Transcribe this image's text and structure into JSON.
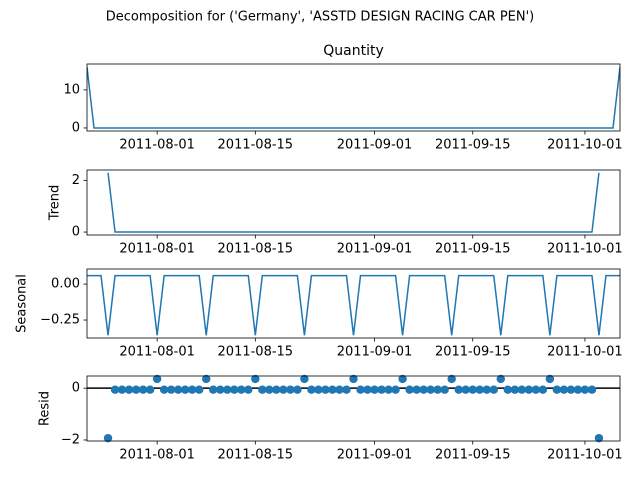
{
  "title": "Decomposition for ('Germany', 'ASSTD DESIGN RACING CAR PEN')",
  "chart_data": [
    {
      "type": "line",
      "title": "Quantity",
      "color": "#1f77b4",
      "x": [
        "2011-07-22",
        "2011-07-23",
        "2011-07-24",
        "2011-07-25",
        "2011-07-26",
        "2011-07-27",
        "2011-07-28",
        "2011-07-29",
        "2011-07-30",
        "2011-07-31",
        "2011-08-01",
        "2011-08-02",
        "2011-08-03",
        "2011-08-04",
        "2011-08-05",
        "2011-08-06",
        "2011-08-07",
        "2011-08-08",
        "2011-08-09",
        "2011-08-10",
        "2011-08-11",
        "2011-08-12",
        "2011-08-13",
        "2011-08-14",
        "2011-08-15",
        "2011-08-16",
        "2011-08-17",
        "2011-08-18",
        "2011-08-19",
        "2011-08-20",
        "2011-08-21",
        "2011-08-22",
        "2011-08-23",
        "2011-08-24",
        "2011-08-25",
        "2011-08-26",
        "2011-08-27",
        "2011-08-28",
        "2011-08-29",
        "2011-08-30",
        "2011-08-31",
        "2011-09-01",
        "2011-09-02",
        "2011-09-03",
        "2011-09-04",
        "2011-09-05",
        "2011-09-06",
        "2011-09-07",
        "2011-09-08",
        "2011-09-09",
        "2011-09-10",
        "2011-09-11",
        "2011-09-12",
        "2011-09-13",
        "2011-09-14",
        "2011-09-15",
        "2011-09-16",
        "2011-09-17",
        "2011-09-18",
        "2011-09-19",
        "2011-09-20",
        "2011-09-21",
        "2011-09-22",
        "2011-09-23",
        "2011-09-24",
        "2011-09-25",
        "2011-09-26",
        "2011-09-27",
        "2011-09-28",
        "2011-09-29",
        "2011-09-30",
        "2011-10-01",
        "2011-10-02",
        "2011-10-03",
        "2011-10-04",
        "2011-10-05",
        "2011-10-06"
      ],
      "values": [
        16,
        0,
        0,
        0,
        0,
        0,
        0,
        0,
        0,
        0,
        0,
        0,
        0,
        0,
        0,
        0,
        0,
        0,
        0,
        0,
        0,
        0,
        0,
        0,
        0,
        0,
        0,
        0,
        0,
        0,
        0,
        0,
        0,
        0,
        0,
        0,
        0,
        0,
        0,
        0,
        0,
        0,
        0,
        0,
        0,
        0,
        0,
        0,
        0,
        0,
        0,
        0,
        0,
        0,
        0,
        0,
        0,
        0,
        0,
        0,
        0,
        0,
        0,
        0,
        0,
        0,
        0,
        0,
        0,
        0,
        0,
        0,
        0,
        0,
        0,
        0,
        16
      ],
      "xlim": [
        "2011-07-22",
        "2011-10-06"
      ],
      "xticks": [
        "2011-08-01",
        "2011-08-15",
        "2011-09-01",
        "2011-09-15",
        "2011-10-01"
      ],
      "ylim": [
        -0.8,
        16.8
      ],
      "yticks": [
        0,
        10
      ]
    },
    {
      "type": "line",
      "ylabel": "Trend",
      "color": "#1f77b4",
      "x": [
        "2011-07-22",
        "2011-07-23",
        "2011-07-24",
        "2011-07-25",
        "2011-07-26",
        "2011-07-27",
        "2011-07-28",
        "2011-07-29",
        "2011-07-30",
        "2011-07-31",
        "2011-08-01",
        "2011-08-02",
        "2011-08-03",
        "2011-08-04",
        "2011-08-05",
        "2011-08-06",
        "2011-08-07",
        "2011-08-08",
        "2011-08-09",
        "2011-08-10",
        "2011-08-11",
        "2011-08-12",
        "2011-08-13",
        "2011-08-14",
        "2011-08-15",
        "2011-08-16",
        "2011-08-17",
        "2011-08-18",
        "2011-08-19",
        "2011-08-20",
        "2011-08-21",
        "2011-08-22",
        "2011-08-23",
        "2011-08-24",
        "2011-08-25",
        "2011-08-26",
        "2011-08-27",
        "2011-08-28",
        "2011-08-29",
        "2011-08-30",
        "2011-08-31",
        "2011-09-01",
        "2011-09-02",
        "2011-09-03",
        "2011-09-04",
        "2011-09-05",
        "2011-09-06",
        "2011-09-07",
        "2011-09-08",
        "2011-09-09",
        "2011-09-10",
        "2011-09-11",
        "2011-09-12",
        "2011-09-13",
        "2011-09-14",
        "2011-09-15",
        "2011-09-16",
        "2011-09-17",
        "2011-09-18",
        "2011-09-19",
        "2011-09-20",
        "2011-09-21",
        "2011-09-22",
        "2011-09-23",
        "2011-09-24",
        "2011-09-25",
        "2011-09-26",
        "2011-09-27",
        "2011-09-28",
        "2011-09-29",
        "2011-09-30",
        "2011-10-01",
        "2011-10-02",
        "2011-10-03",
        "2011-10-04",
        "2011-10-05",
        "2011-10-06"
      ],
      "values": [
        null,
        null,
        null,
        2.29,
        0,
        0,
        0,
        0,
        0,
        0,
        0,
        0,
        0,
        0,
        0,
        0,
        0,
        0,
        0,
        0,
        0,
        0,
        0,
        0,
        0,
        0,
        0,
        0,
        0,
        0,
        0,
        0,
        0,
        0,
        0,
        0,
        0,
        0,
        0,
        0,
        0,
        0,
        0,
        0,
        0,
        0,
        0,
        0,
        0,
        0,
        0,
        0,
        0,
        0,
        0,
        0,
        0,
        0,
        0,
        0,
        0,
        0,
        0,
        0,
        0,
        0,
        0,
        0,
        0,
        0,
        0,
        0,
        0,
        2.29,
        null,
        null,
        null
      ],
      "xlim": [
        "2011-07-22",
        "2011-10-06"
      ],
      "xticks": [
        "2011-08-01",
        "2011-08-15",
        "2011-09-01",
        "2011-09-15",
        "2011-10-01"
      ],
      "ylim": [
        -0.114,
        2.4
      ],
      "yticks": [
        0,
        2
      ]
    },
    {
      "type": "line",
      "ylabel": "Seasonal",
      "color": "#1f77b4",
      "x": [
        "2011-07-22",
        "2011-07-23",
        "2011-07-24",
        "2011-07-25",
        "2011-07-26",
        "2011-07-27",
        "2011-07-28",
        "2011-07-29",
        "2011-07-30",
        "2011-07-31",
        "2011-08-01",
        "2011-08-02",
        "2011-08-03",
        "2011-08-04",
        "2011-08-05",
        "2011-08-06",
        "2011-08-07",
        "2011-08-08",
        "2011-08-09",
        "2011-08-10",
        "2011-08-11",
        "2011-08-12",
        "2011-08-13",
        "2011-08-14",
        "2011-08-15",
        "2011-08-16",
        "2011-08-17",
        "2011-08-18",
        "2011-08-19",
        "2011-08-20",
        "2011-08-21",
        "2011-08-22",
        "2011-08-23",
        "2011-08-24",
        "2011-08-25",
        "2011-08-26",
        "2011-08-27",
        "2011-08-28",
        "2011-08-29",
        "2011-08-30",
        "2011-08-31",
        "2011-09-01",
        "2011-09-02",
        "2011-09-03",
        "2011-09-04",
        "2011-09-05",
        "2011-09-06",
        "2011-09-07",
        "2011-09-08",
        "2011-09-09",
        "2011-09-10",
        "2011-09-11",
        "2011-09-12",
        "2011-09-13",
        "2011-09-14",
        "2011-09-15",
        "2011-09-16",
        "2011-09-17",
        "2011-09-18",
        "2011-09-19",
        "2011-09-20",
        "2011-09-21",
        "2011-09-22",
        "2011-09-23",
        "2011-09-24",
        "2011-09-25",
        "2011-09-26",
        "2011-09-27",
        "2011-09-28",
        "2011-09-29",
        "2011-09-30",
        "2011-10-01",
        "2011-10-02",
        "2011-10-03",
        "2011-10-04",
        "2011-10-05",
        "2011-10-06"
      ],
      "values": [
        0.059,
        0.059,
        0.059,
        -0.356,
        0.059,
        0.059,
        0.059,
        0.059,
        0.059,
        0.059,
        -0.356,
        0.059,
        0.059,
        0.059,
        0.059,
        0.059,
        0.059,
        -0.356,
        0.059,
        0.059,
        0.059,
        0.059,
        0.059,
        0.059,
        -0.356,
        0.059,
        0.059,
        0.059,
        0.059,
        0.059,
        0.059,
        -0.356,
        0.059,
        0.059,
        0.059,
        0.059,
        0.059,
        0.059,
        -0.356,
        0.059,
        0.059,
        0.059,
        0.059,
        0.059,
        0.059,
        -0.356,
        0.059,
        0.059,
        0.059,
        0.059,
        0.059,
        0.059,
        -0.356,
        0.059,
        0.059,
        0.059,
        0.059,
        0.059,
        0.059,
        -0.356,
        0.059,
        0.059,
        0.059,
        0.059,
        0.059,
        0.059,
        -0.356,
        0.059,
        0.059,
        0.059,
        0.059,
        0.059,
        0.059,
        -0.356,
        0.059,
        0.059,
        0.059
      ],
      "xlim": [
        "2011-07-22",
        "2011-10-06"
      ],
      "xticks": [
        "2011-08-01",
        "2011-08-15",
        "2011-09-01",
        "2011-09-15",
        "2011-10-01"
      ],
      "ylim": [
        -0.375,
        0.105
      ],
      "yticks": [
        {
          "value": 0,
          "label": "0.00"
        },
        {
          "value": -0.25,
          "label": "−0.25"
        }
      ]
    },
    {
      "type": "scatter",
      "ylabel": "Resid",
      "color": "#1f77b4",
      "hline": 0,
      "x": [
        "2011-07-22",
        "2011-07-23",
        "2011-07-24",
        "2011-07-25",
        "2011-07-26",
        "2011-07-27",
        "2011-07-28",
        "2011-07-29",
        "2011-07-30",
        "2011-07-31",
        "2011-08-01",
        "2011-08-02",
        "2011-08-03",
        "2011-08-04",
        "2011-08-05",
        "2011-08-06",
        "2011-08-07",
        "2011-08-08",
        "2011-08-09",
        "2011-08-10",
        "2011-08-11",
        "2011-08-12",
        "2011-08-13",
        "2011-08-14",
        "2011-08-15",
        "2011-08-16",
        "2011-08-17",
        "2011-08-18",
        "2011-08-19",
        "2011-08-20",
        "2011-08-21",
        "2011-08-22",
        "2011-08-23",
        "2011-08-24",
        "2011-08-25",
        "2011-08-26",
        "2011-08-27",
        "2011-08-28",
        "2011-08-29",
        "2011-08-30",
        "2011-08-31",
        "2011-09-01",
        "2011-09-02",
        "2011-09-03",
        "2011-09-04",
        "2011-09-05",
        "2011-09-06",
        "2011-09-07",
        "2011-09-08",
        "2011-09-09",
        "2011-09-10",
        "2011-09-11",
        "2011-09-12",
        "2011-09-13",
        "2011-09-14",
        "2011-09-15",
        "2011-09-16",
        "2011-09-17",
        "2011-09-18",
        "2011-09-19",
        "2011-09-20",
        "2011-09-21",
        "2011-09-22",
        "2011-09-23",
        "2011-09-24",
        "2011-09-25",
        "2011-09-26",
        "2011-09-27",
        "2011-09-28",
        "2011-09-29",
        "2011-09-30",
        "2011-10-01",
        "2011-10-02",
        "2011-10-03",
        "2011-10-04",
        "2011-10-05",
        "2011-10-06"
      ],
      "values": [
        null,
        null,
        null,
        -1.93,
        -0.059,
        -0.059,
        -0.059,
        -0.059,
        -0.059,
        -0.059,
        0.356,
        -0.059,
        -0.059,
        -0.059,
        -0.059,
        -0.059,
        -0.059,
        0.356,
        -0.059,
        -0.059,
        -0.059,
        -0.059,
        -0.059,
        -0.059,
        0.356,
        -0.059,
        -0.059,
        -0.059,
        -0.059,
        -0.059,
        -0.059,
        0.356,
        -0.059,
        -0.059,
        -0.059,
        -0.059,
        -0.059,
        -0.059,
        0.356,
        -0.059,
        -0.059,
        -0.059,
        -0.059,
        -0.059,
        -0.059,
        0.356,
        -0.059,
        -0.059,
        -0.059,
        -0.059,
        -0.059,
        -0.059,
        0.356,
        -0.059,
        -0.059,
        -0.059,
        -0.059,
        -0.059,
        -0.059,
        0.356,
        -0.059,
        -0.059,
        -0.059,
        -0.059,
        -0.059,
        -0.059,
        0.356,
        -0.059,
        -0.059,
        -0.059,
        -0.059,
        -0.059,
        -0.059,
        -1.93,
        null,
        null,
        null
      ],
      "xlim": [
        "2011-07-22",
        "2011-10-06"
      ],
      "xticks": [
        "2011-08-01",
        "2011-08-15",
        "2011-09-01",
        "2011-09-15",
        "2011-10-01"
      ],
      "ylim": [
        -2.04,
        0.47
      ],
      "yticks": [
        0,
        {
          "value": -2,
          "label": "−2"
        }
      ]
    }
  ]
}
